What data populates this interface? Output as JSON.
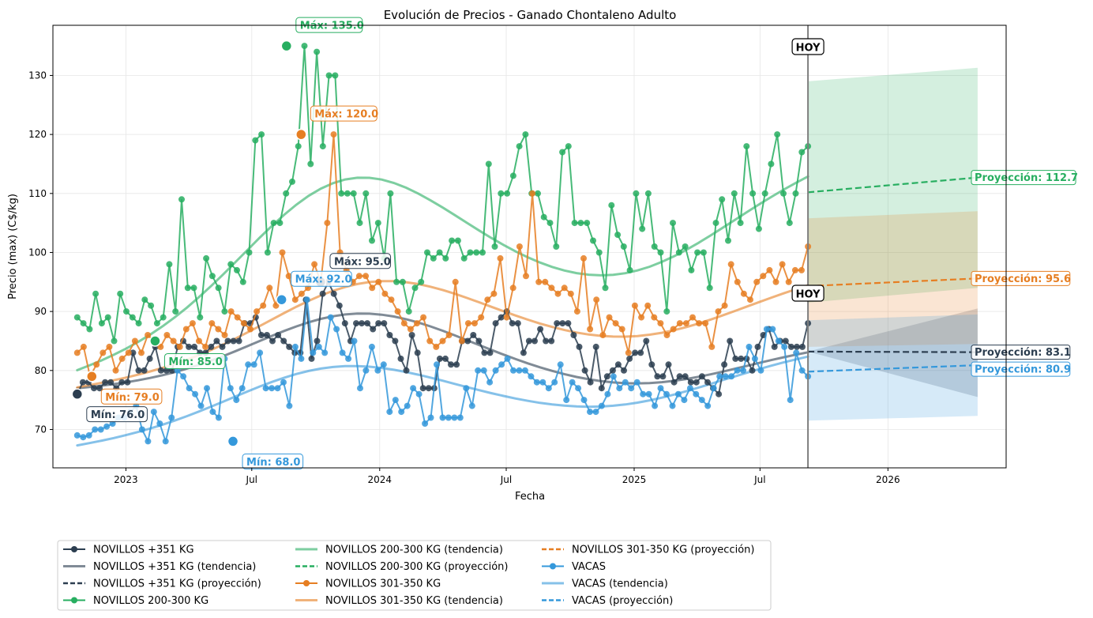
{
  "chart_data": {
    "type": "line",
    "title": "Evolución de Precios - Ganado Chontaleno Adulto",
    "xlabel": "Fecha",
    "ylabel": "Precio (max) (C$/kg)",
    "ylim": [
      63.5,
      138.5
    ],
    "xlim": [
      "2022-09-18",
      "2026-06-20"
    ],
    "yticks": [
      70,
      80,
      90,
      100,
      110,
      120,
      130
    ],
    "xticks": [
      {
        "date": "2023-01-01",
        "label": "2023"
      },
      {
        "date": "2023-07-01",
        "label": "Jul"
      },
      {
        "date": "2024-01-01",
        "label": "2024"
      },
      {
        "date": "2024-07-01",
        "label": "Jul"
      },
      {
        "date": "2025-01-01",
        "label": "2025"
      },
      {
        "date": "2025-07-01",
        "label": "Jul"
      },
      {
        "date": "2026-01-01",
        "label": "2026"
      }
    ],
    "grid": true,
    "legend_position": "bottom-left",
    "today": {
      "date": "2025-09-08",
      "label": "HOY"
    },
    "series": [
      {
        "name": "NOVILLOS +351 KG",
        "color": "#2c3e50",
        "start": "2022-10-23",
        "end": "2025-09-08",
        "values": [
          76,
          78,
          78,
          77,
          77,
          78,
          78,
          77,
          78,
          78,
          83,
          80,
          80,
          82,
          84,
          80,
          80,
          80,
          84,
          85,
          84,
          84,
          83,
          83,
          84,
          85,
          84,
          85,
          85,
          85,
          88,
          88,
          89,
          86,
          86,
          85,
          86,
          85,
          84,
          83,
          83,
          92,
          82,
          85,
          93,
          95,
          93,
          91,
          88,
          85,
          88,
          88,
          88,
          87,
          88,
          88,
          86,
          85,
          82,
          80,
          86,
          83,
          77,
          77,
          77,
          82,
          82,
          81,
          81,
          85,
          85,
          86,
          85,
          83,
          83,
          88,
          89,
          90,
          88,
          88,
          83,
          85,
          85,
          87,
          85,
          85,
          88,
          88,
          88,
          86,
          84,
          80,
          78,
          84,
          77,
          79,
          80,
          81,
          80,
          82,
          83,
          83,
          85,
          81,
          79,
          79,
          81,
          78,
          79,
          79,
          78,
          78,
          79,
          78,
          77,
          76,
          81,
          85,
          82,
          82,
          82,
          80,
          84,
          86,
          87,
          84,
          85,
          85,
          84,
          84,
          84,
          88
        ],
        "trend": {
          "start": 76.8,
          "end": 84.4,
          "bumps": [
            [
              2023.9,
              10
            ],
            [
              2025.05,
              -5
            ]
          ]
        },
        "min": {
          "date": "2022-10-23",
          "value": 76.0,
          "label": "Mín: 76.0"
        },
        "max": {
          "date": "2023-10-08",
          "value": 95.0,
          "label": "Máx: 95.0"
        },
        "projection": {
          "start": 83.2,
          "end": 83.1,
          "band_low": [
            83.2,
            75.5
          ],
          "band_high": [
            83.2,
            90.5
          ],
          "label": "Proyección: 83.1"
        }
      },
      {
        "name": "NOVILLOS 200-300 KG",
        "color": "#27ae60",
        "start": "2022-10-23",
        "end": "2025-09-08",
        "values": [
          89,
          88,
          87,
          93,
          88,
          89,
          85,
          93,
          90,
          89,
          88,
          92,
          91,
          88,
          89,
          98,
          90,
          109,
          94,
          94,
          89,
          99,
          96,
          94,
          90,
          98,
          97,
          95,
          100,
          119,
          120,
          100,
          105,
          105,
          110,
          112,
          118,
          135,
          115,
          134,
          118,
          130,
          130,
          110,
          110,
          110,
          105,
          110,
          102,
          105,
          99,
          110,
          95,
          95,
          90,
          94,
          95,
          100,
          99,
          100,
          99,
          102,
          102,
          99,
          100,
          100,
          100,
          115,
          101,
          110,
          110,
          113,
          118,
          120,
          110,
          110,
          106,
          105,
          101,
          117,
          118,
          105,
          105,
          105,
          102,
          100,
          94,
          108,
          103,
          101,
          97,
          110,
          104,
          110,
          101,
          100,
          90,
          105,
          100,
          101,
          97,
          100,
          100,
          94,
          105,
          109,
          102,
          110,
          105,
          118,
          110,
          104,
          110,
          115,
          120,
          110,
          105,
          110,
          117,
          118
        ],
        "trend": {
          "start": 79.5,
          "end": 115,
          "bumps": [
            [
              2023.85,
              20
            ],
            [
              2025.0,
              -10
            ]
          ]
        },
        "min": {
          "date": "2023-02-12",
          "value": 85.0,
          "label": "Mín: 85.0"
        },
        "max": {
          "date": "2023-08-20",
          "value": 135.0,
          "label": "Máx: 135.0"
        },
        "projection": {
          "start": 110.2,
          "end": 112.7,
          "band_low": [
            91.5,
            94.0
          ],
          "band_high": [
            129.0,
            131.3
          ],
          "label": "Proyección: 112.7"
        }
      },
      {
        "name": "NOVILLOS 301-350 KG",
        "color": "#e67e22",
        "start": "2022-10-23",
        "end": "2025-09-08",
        "values": [
          83,
          84,
          79,
          81,
          83,
          84,
          80,
          82,
          83,
          85,
          83,
          86,
          85,
          84,
          86,
          85,
          84,
          87,
          88,
          85,
          84,
          88,
          87,
          86,
          90,
          89,
          88,
          87,
          90,
          91,
          94,
          91,
          100,
          96,
          92,
          93,
          94,
          98,
          95,
          105,
          120,
          100,
          97,
          95,
          96,
          96,
          94,
          95,
          93,
          92,
          90,
          88,
          87,
          88,
          89,
          85,
          84,
          85,
          86,
          95,
          85,
          88,
          88,
          89,
          92,
          93,
          99,
          89,
          94,
          101,
          96,
          110,
          95,
          95,
          94,
          93,
          94,
          93,
          90,
          99,
          87,
          92,
          86,
          89,
          88,
          87,
          83,
          91,
          89,
          91,
          89,
          88,
          86,
          87,
          88,
          88,
          89,
          88,
          88,
          84,
          90,
          91,
          98,
          95,
          93,
          92,
          95,
          96,
          97,
          95,
          98,
          95,
          97,
          97,
          101
        ],
        "trend": {
          "start": 77,
          "end": 96,
          "bumps": [
            [
              2023.95,
              10.5
            ],
            [
              2025.05,
              -6
            ]
          ]
        },
        "min": {
          "date": "2022-11-13",
          "value": 79.0,
          "label": "Mín: 79.0"
        },
        "max": {
          "date": "2023-09-10",
          "value": 120.0,
          "label": "Máx: 120.0"
        },
        "projection": {
          "start": 94.3,
          "end": 95.6,
          "band_low": [
            84.0,
            84.5
          ],
          "band_high": [
            105.8,
            107.0
          ],
          "label": "Proyección: 95.6"
        }
      },
      {
        "name": "VACAS",
        "color": "#3498db",
        "start": "2022-10-23",
        "end": "2025-09-08",
        "values": [
          69,
          68.7,
          69,
          70,
          70,
          70.5,
          71,
          72,
          72,
          73,
          74,
          70,
          68,
          73,
          71,
          68,
          72,
          80,
          79,
          77,
          76,
          74,
          77,
          73,
          72,
          82,
          77,
          75,
          77,
          81,
          81,
          83,
          77,
          77,
          77,
          78,
          74,
          84,
          82,
          92,
          83,
          84,
          83,
          89,
          87,
          83,
          82,
          85,
          77,
          80,
          84,
          80,
          81,
          73,
          75,
          73,
          74,
          77,
          76,
          71,
          72,
          81,
          72,
          72,
          72,
          72,
          77,
          74,
          80,
          80,
          78,
          80,
          81,
          82,
          80,
          80,
          80,
          79,
          78,
          78,
          77,
          78,
          81,
          75,
          78,
          77,
          75,
          73,
          73,
          74,
          76,
          79,
          77,
          78,
          77,
          78,
          76,
          76,
          74,
          77,
          76,
          74,
          76,
          75,
          77,
          76,
          75,
          74,
          77,
          79,
          79,
          79,
          80,
          80,
          84,
          82,
          80,
          87,
          87,
          85,
          84,
          75,
          83,
          80,
          79
        ],
        "trend": {
          "start": 67,
          "end": 83.2,
          "bumps": [
            [
              2023.8,
              8
            ],
            [
              2024.95,
              -5
            ]
          ]
        },
        "min": {
          "date": "2023-06-04",
          "value": 68.0,
          "label": "Mín: 68.0"
        },
        "max": {
          "date": "2023-08-13",
          "value": 92.0,
          "label": "Máx: 92.0"
        },
        "projection": {
          "start": 79.8,
          "end": 80.9,
          "band_low": [
            71.5,
            72.3
          ],
          "band_high": [
            88.5,
            89.5
          ],
          "label": "Proyección: 80.9"
        }
      }
    ],
    "legend": [
      {
        "label": "NOVILLOS +351 KG",
        "style": "marker",
        "color": "#2c3e50"
      },
      {
        "label": "NOVILLOS +351 KG (tendencia)",
        "style": "trend",
        "color": "#2c3e50"
      },
      {
        "label": "NOVILLOS +351 KG (proyección)",
        "style": "dash",
        "color": "#2c3e50"
      },
      {
        "label": "NOVILLOS 200-300 KG",
        "style": "marker",
        "color": "#27ae60"
      },
      {
        "label": "NOVILLOS 200-300 KG (tendencia)",
        "style": "trend",
        "color": "#27ae60"
      },
      {
        "label": "NOVILLOS 200-300 KG (proyección)",
        "style": "dash",
        "color": "#27ae60"
      },
      {
        "label": "NOVILLOS 301-350 KG",
        "style": "marker",
        "color": "#e67e22"
      },
      {
        "label": "NOVILLOS 301-350 KG (tendencia)",
        "style": "trend",
        "color": "#e67e22"
      },
      {
        "label": "NOVILLOS 301-350 KG (proyección)",
        "style": "dash",
        "color": "#e67e22"
      },
      {
        "label": "VACAS",
        "style": "marker",
        "color": "#3498db"
      },
      {
        "label": "VACAS (tendencia)",
        "style": "trend",
        "color": "#3498db"
      },
      {
        "label": "VACAS (proyección)",
        "style": "dash",
        "color": "#3498db"
      }
    ]
  }
}
